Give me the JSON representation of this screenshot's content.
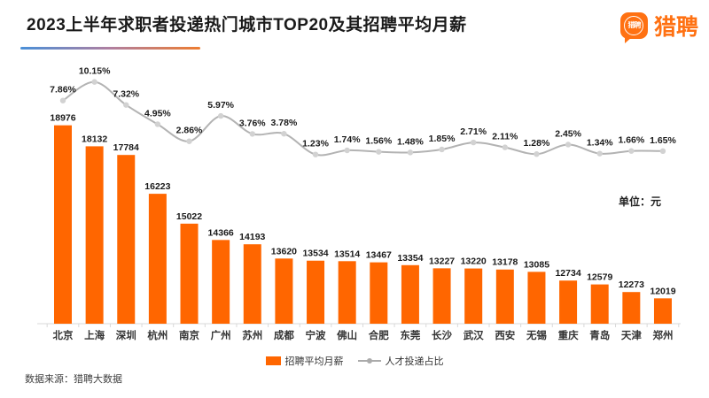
{
  "header": {
    "title": "2023上半年求职者投递热门城市TOP20及其招聘平均月薪",
    "logo_text": "猎聘",
    "logo_icon_text": "猎聘"
  },
  "unit_label": "单位：元",
  "legend": {
    "bar_label": "招聘平均月薪",
    "line_label": "人才投递占比"
  },
  "footer": {
    "source": "数据来源：猎聘大数据"
  },
  "colors": {
    "bar": "#ff6600",
    "line": "#b3b3b3",
    "marker": "#d2d2d2",
    "axis": "#d9d9d9",
    "label": "#1a1a1a",
    "city_label": "#333333",
    "logo_orange": "#ff7112",
    "underline_from": "#4a90d8",
    "underline_to": "#ed7d31"
  },
  "chart_data": {
    "type": "bar+line",
    "title": "2023上半年求职者投递热门城市TOP20及其招聘平均月薪",
    "unit": "单位：元",
    "categories": [
      "北京",
      "上海",
      "深圳",
      "杭州",
      "南京",
      "广州",
      "苏州",
      "成都",
      "宁波",
      "佛山",
      "合肥",
      "东莞",
      "长沙",
      "武汉",
      "西安",
      "无锡",
      "重庆",
      "青岛",
      "天津",
      "郑州"
    ],
    "series": [
      {
        "name": "招聘平均月薪",
        "type": "bar",
        "values": [
          18976,
          18132,
          17784,
          16223,
          15022,
          14366,
          14193,
          13620,
          13534,
          13514,
          13467,
          13354,
          13227,
          13220,
          13178,
          13085,
          12734,
          12579,
          12273,
          12019
        ]
      },
      {
        "name": "人才投递占比",
        "type": "line",
        "unit": "%",
        "values": [
          7.86,
          10.15,
          7.32,
          4.95,
          2.86,
          5.97,
          3.76,
          3.78,
          1.23,
          1.74,
          1.56,
          1.48,
          1.85,
          2.71,
          2.11,
          1.28,
          2.45,
          1.34,
          1.66,
          1.65
        ]
      }
    ],
    "bar_axis": {
      "min": 11000,
      "max": 19000
    },
    "line_axis": {
      "min": 0,
      "max": 12
    },
    "grid": false,
    "legend_position": "bottom",
    "source": "数据来源：猎聘大数据"
  }
}
